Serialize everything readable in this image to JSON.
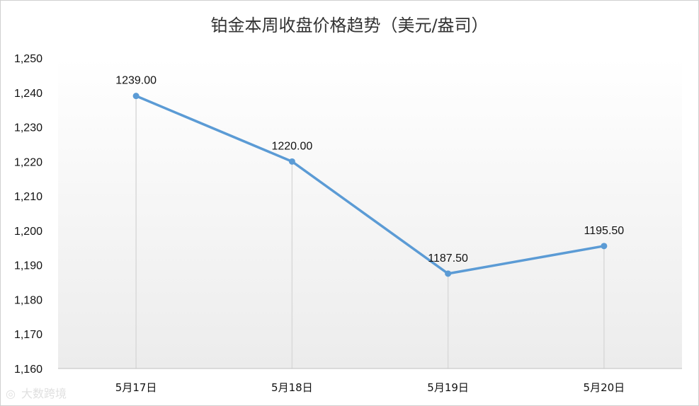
{
  "chart_data": {
    "type": "line",
    "title": "铂金本周收盘价格趋势（美元/盎司）",
    "categories": [
      "5月17日",
      "5月18日",
      "5月19日",
      "5月20日"
    ],
    "values": [
      1239.0,
      1220.0,
      1187.5,
      1195.5
    ],
    "data_labels": [
      "1239.00",
      "1220.00",
      "1187.50",
      "1195.50"
    ],
    "y_ticks": [
      "1,160",
      "1,170",
      "1,180",
      "1,190",
      "1,200",
      "1,210",
      "1,220",
      "1,230",
      "1,240",
      "1,250"
    ],
    "ylim": [
      1160,
      1250
    ],
    "grid": false,
    "line_color": "#5b9bd5",
    "drop_line_color": "#d9d9d9"
  },
  "watermark": {
    "text": "大数跨境"
  }
}
